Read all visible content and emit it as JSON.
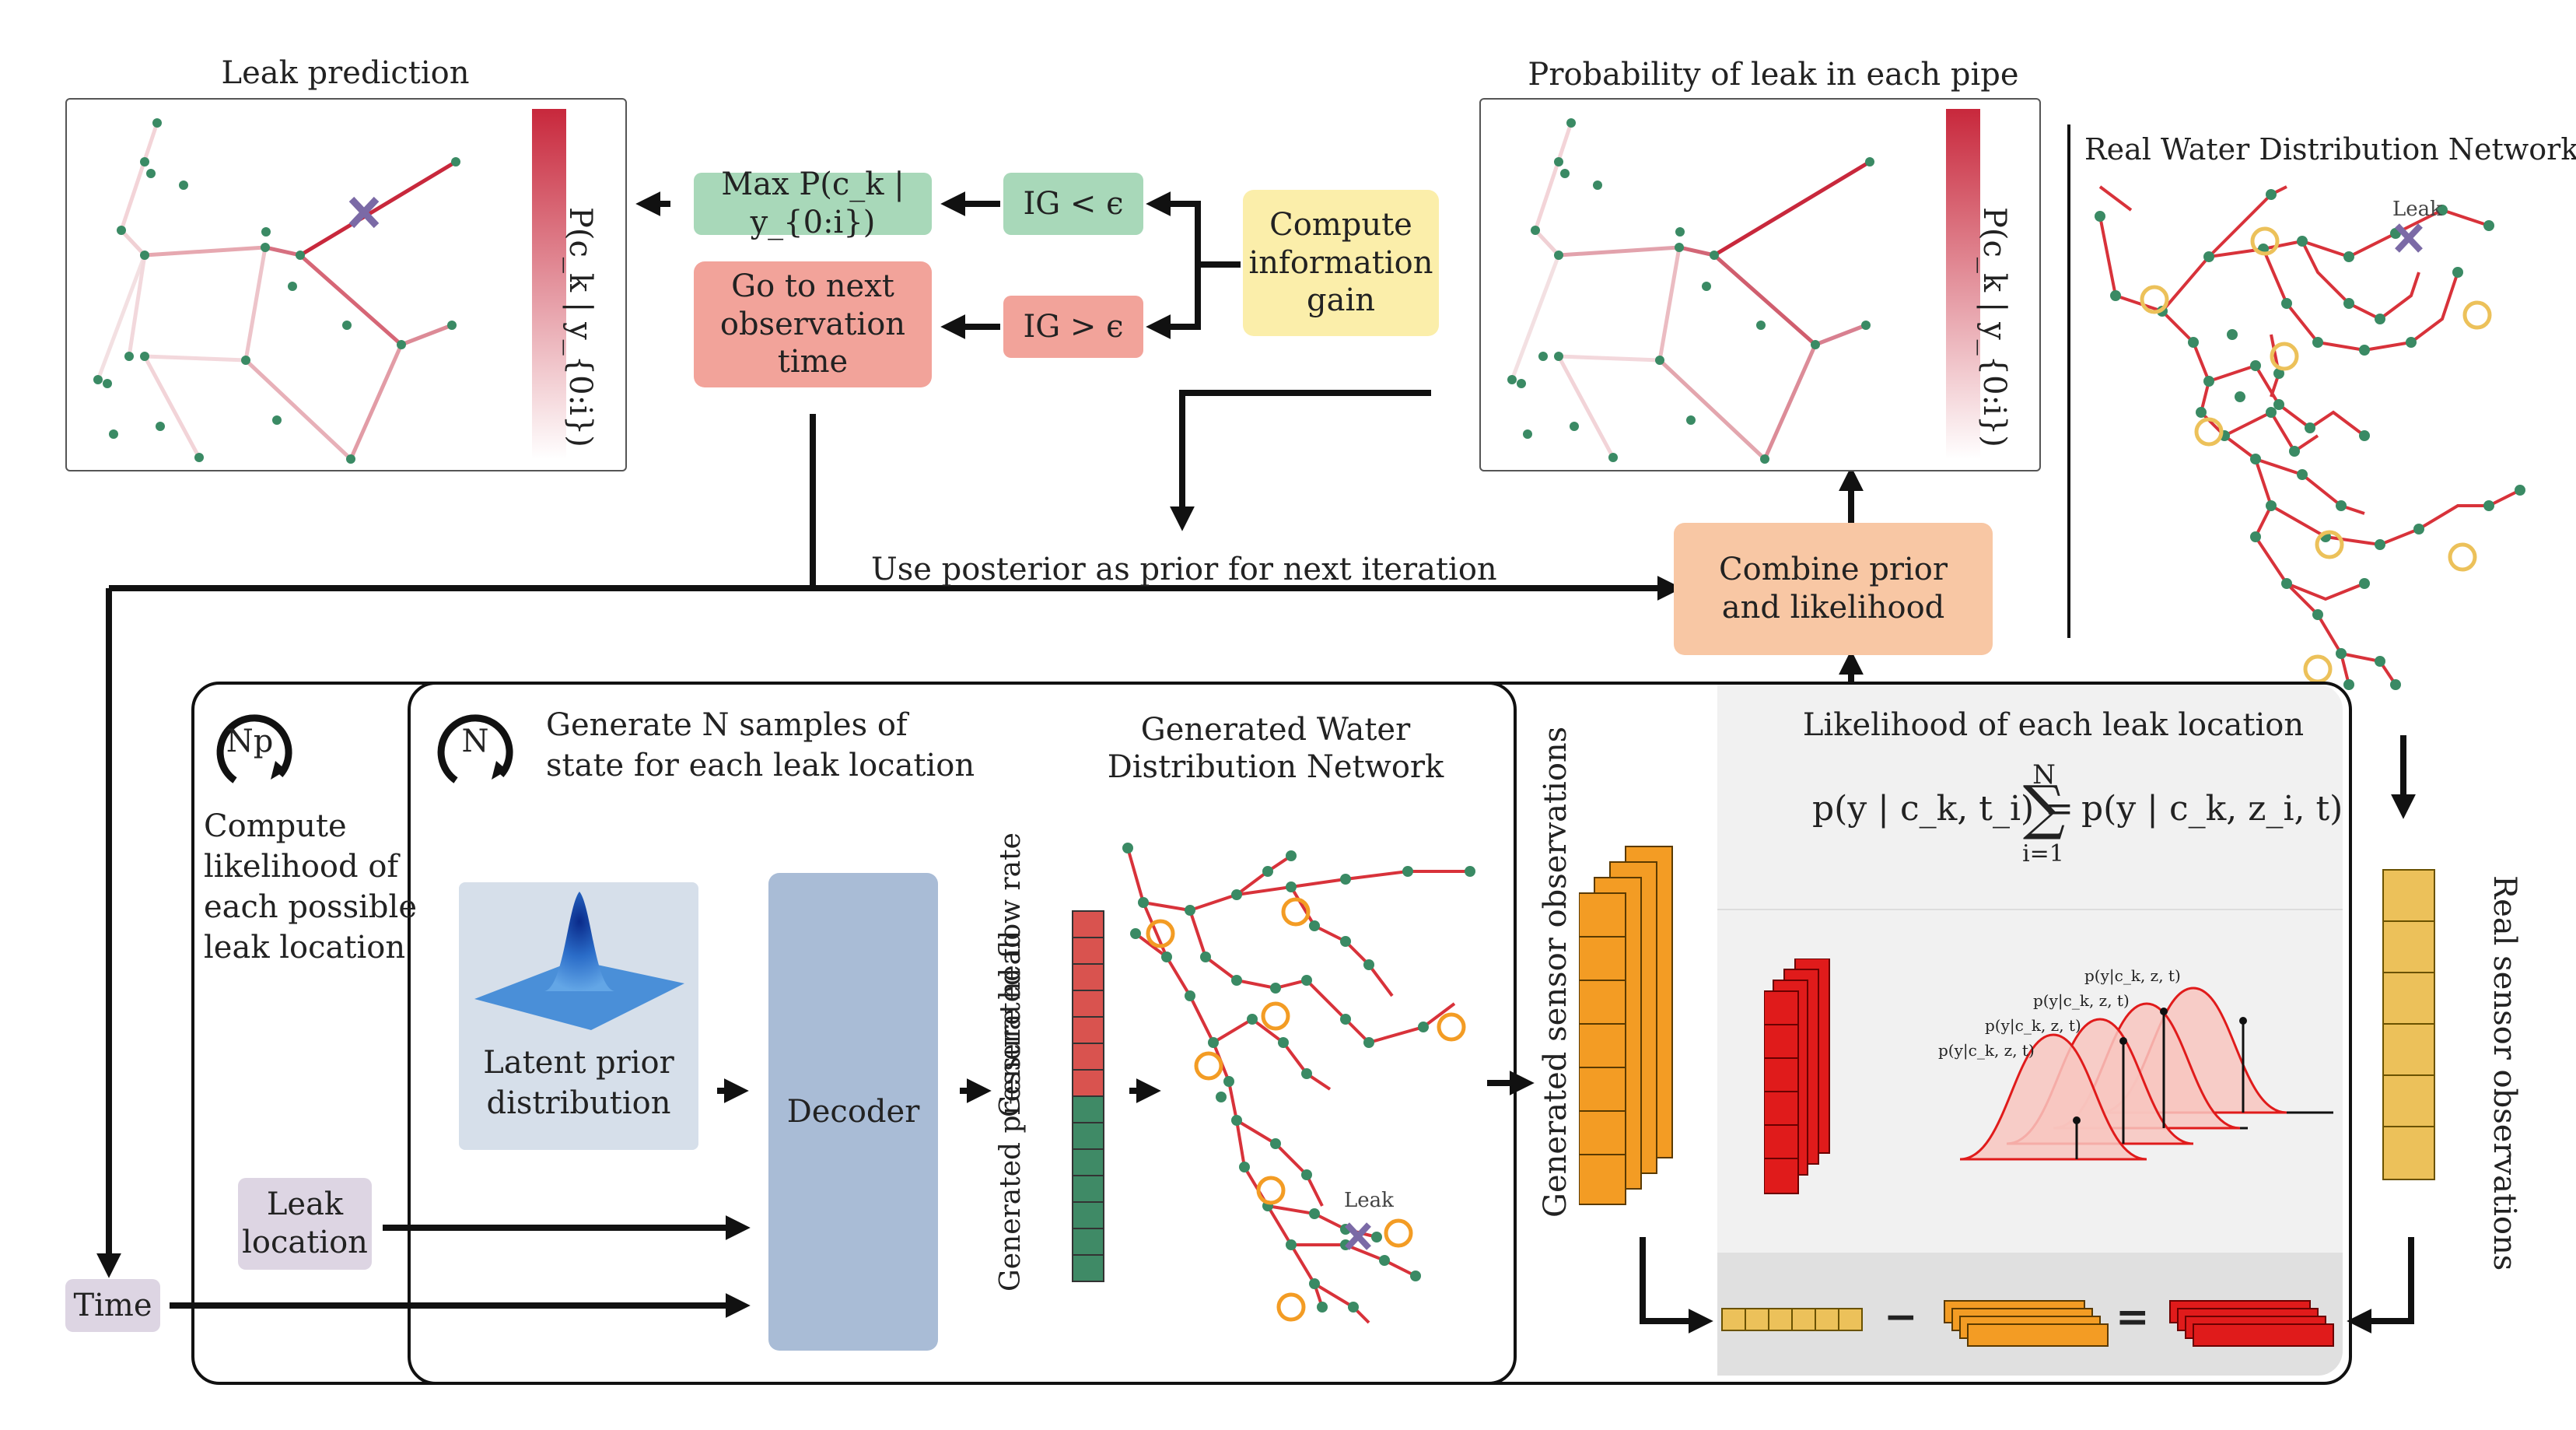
{
  "titles": {
    "leak_prediction": "Leak prediction",
    "probability_panel": "Probability of leak in each pipe",
    "real_network": "Real Water Distribution Network",
    "generated_network": "Generated Water\nDistribution Network",
    "likelihood_panel": "Likelihood of each leak location"
  },
  "colorbar_label": "P(c_k | y_{0:i})",
  "leak_marker_label": "Leak",
  "decision": {
    "max_box": "Max P(c_k | y_{0:i})",
    "ig_less": "IG < ϵ",
    "ig_greater": "IG > ϵ",
    "compute_ig": "Compute\ninformation\ngain",
    "next_obs": "Go to next\nobservation\ntime"
  },
  "flow": {
    "posterior_prior": "Use posterior as prior for next iteration",
    "combine": "Combine prior\nand likelihood"
  },
  "outer_loop": {
    "symbol": "Np",
    "text": "Compute\nlikelihood of\neach possible\nleak location"
  },
  "inner_loop": {
    "symbol": "N",
    "text": "Generate N samples of\nstate for each leak location"
  },
  "inputs": {
    "latent": "Latent prior\ndistribution",
    "leak_location": "Leak\nlocation",
    "time": "Time"
  },
  "decoder": "Decoder",
  "generated_vectors": {
    "flow_rate": "Generated\nflow rate",
    "pressure_head": "Generated\npressure head"
  },
  "generated_sensor_obs": "Generated sensor observations",
  "real_sensor_obs": "Real sensor observations",
  "likelihood_formula": {
    "lhs": "p(y | c_k, t_i) =",
    "sum_upper": "N",
    "sum_lower": "i=1",
    "rhs": "p(y | c_k, z_i, t)"
  },
  "gaussian_labels": [
    "p(y|c_k, z, t)",
    "p(y|c_k, z, t)",
    "p(y|c_k, z, t)",
    "p(y|c_k, z, t)"
  ],
  "operators": {
    "minus": "−",
    "equals": "="
  },
  "colors": {
    "green_box": "#a8d8b9",
    "red_box": "#f2a39a",
    "yellow_box": "#fbeeaa",
    "orange_box": "#f8c7a4",
    "lavender_box": "#ddd5e3",
    "decoder_box": "#a9bcd6",
    "latent_box": "#d6dfea",
    "pipe_red": "#c8283c",
    "node_green": "#3a8a64",
    "sensor_orange": "#f39c24",
    "sensor_gold": "#ecc15a",
    "residual_red": "#e01b1b"
  }
}
